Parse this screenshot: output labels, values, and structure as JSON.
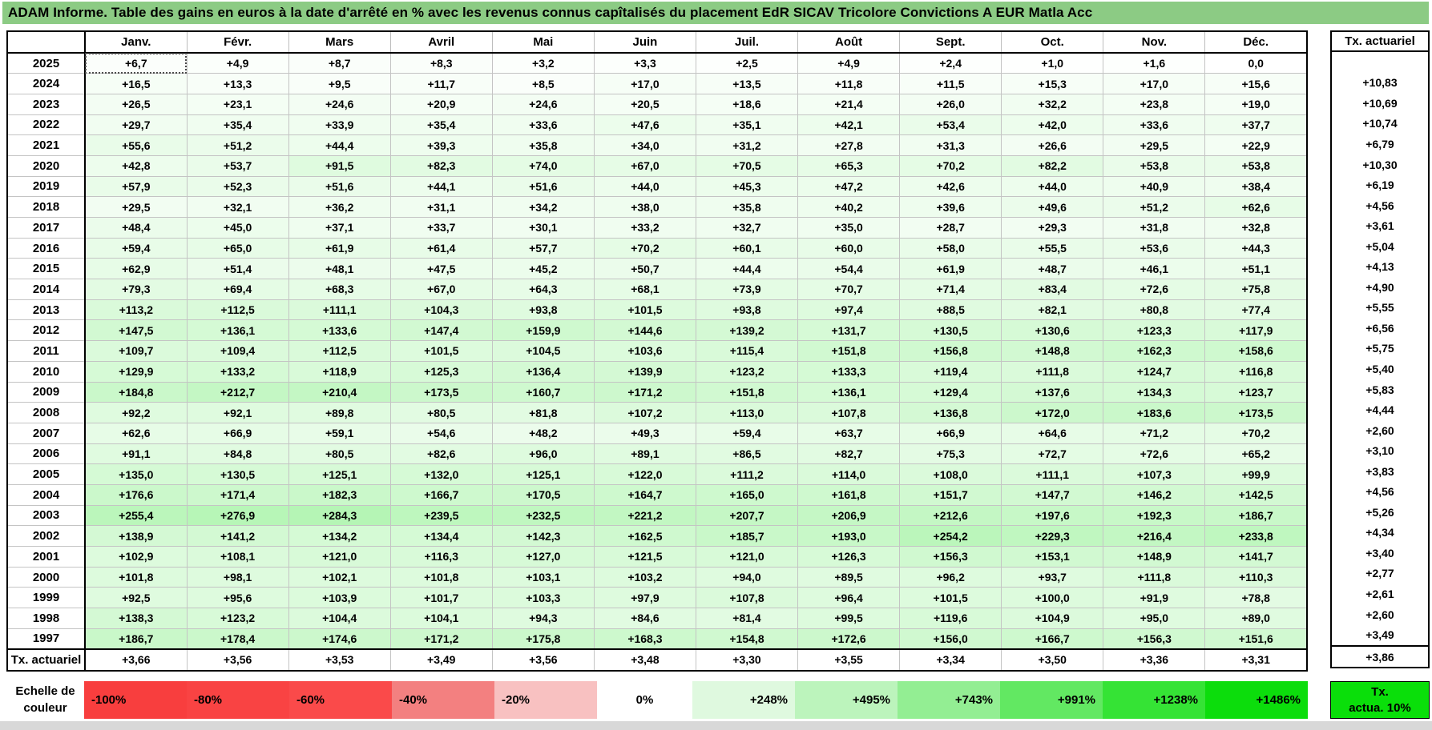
{
  "title": "ADAM Informe. Table des gains en euros à la date d'arrêté en % avec les revenus connus capîtalisés du placement EdR SICAV Tricolore Convictions A EUR Matla Acc",
  "table": {
    "corner": "",
    "columns": [
      "Janv.",
      "Févr.",
      "Mars",
      "Avril",
      "Mai",
      "Juin",
      "Juil.",
      "Août",
      "Sept.",
      "Oct.",
      "Nov.",
      "Déc."
    ],
    "right_header": "Tx. actuariel",
    "rows": [
      {
        "year": "2025",
        "values": [
          "+6,7",
          "+4,9",
          "+8,7",
          "+8,3",
          "+3,2",
          "+3,3",
          "+2,5",
          "+4,9",
          "+2,4",
          "+1,0",
          "+1,6",
          "0,0"
        ],
        "tx": ""
      },
      {
        "year": "2024",
        "values": [
          "+16,5",
          "+13,3",
          "+9,5",
          "+11,7",
          "+8,5",
          "+17,0",
          "+13,5",
          "+11,8",
          "+11,5",
          "+15,3",
          "+17,0",
          "+15,6"
        ],
        "tx": "+10,83"
      },
      {
        "year": "2023",
        "values": [
          "+26,5",
          "+23,1",
          "+24,6",
          "+20,9",
          "+24,6",
          "+20,5",
          "+18,6",
          "+21,4",
          "+26,0",
          "+32,2",
          "+23,8",
          "+19,0"
        ],
        "tx": "+10,69"
      },
      {
        "year": "2022",
        "values": [
          "+29,7",
          "+35,4",
          "+33,9",
          "+35,4",
          "+33,6",
          "+47,6",
          "+35,1",
          "+42,1",
          "+53,4",
          "+42,0",
          "+33,6",
          "+37,7"
        ],
        "tx": "+10,74"
      },
      {
        "year": "2021",
        "values": [
          "+55,6",
          "+51,2",
          "+44,4",
          "+39,3",
          "+35,8",
          "+34,0",
          "+31,2",
          "+27,8",
          "+31,3",
          "+26,6",
          "+29,5",
          "+22,9"
        ],
        "tx": "+6,79"
      },
      {
        "year": "2020",
        "values": [
          "+42,8",
          "+53,7",
          "+91,5",
          "+82,3",
          "+74,0",
          "+67,0",
          "+70,5",
          "+65,3",
          "+70,2",
          "+82,2",
          "+53,8",
          "+53,8"
        ],
        "tx": "+10,30"
      },
      {
        "year": "2019",
        "values": [
          "+57,9",
          "+52,3",
          "+51,6",
          "+44,1",
          "+51,6",
          "+44,0",
          "+45,3",
          "+47,2",
          "+42,6",
          "+44,0",
          "+40,9",
          "+38,4"
        ],
        "tx": "+6,19"
      },
      {
        "year": "2018",
        "values": [
          "+29,5",
          "+32,1",
          "+36,2",
          "+31,1",
          "+34,2",
          "+38,0",
          "+35,8",
          "+40,2",
          "+39,6",
          "+49,6",
          "+51,2",
          "+62,6"
        ],
        "tx": "+4,56"
      },
      {
        "year": "2017",
        "values": [
          "+48,4",
          "+45,0",
          "+37,1",
          "+33,7",
          "+30,1",
          "+33,2",
          "+32,7",
          "+35,0",
          "+28,7",
          "+29,3",
          "+31,8",
          "+32,8"
        ],
        "tx": "+3,61"
      },
      {
        "year": "2016",
        "values": [
          "+59,4",
          "+65,0",
          "+61,9",
          "+61,4",
          "+57,7",
          "+70,2",
          "+60,1",
          "+60,0",
          "+58,0",
          "+55,5",
          "+53,6",
          "+44,3"
        ],
        "tx": "+5,04"
      },
      {
        "year": "2015",
        "values": [
          "+62,9",
          "+51,4",
          "+48,1",
          "+47,5",
          "+45,2",
          "+50,7",
          "+44,4",
          "+54,4",
          "+61,9",
          "+48,7",
          "+46,1",
          "+51,1"
        ],
        "tx": "+4,13"
      },
      {
        "year": "2014",
        "values": [
          "+79,3",
          "+69,4",
          "+68,3",
          "+67,0",
          "+64,3",
          "+68,1",
          "+73,9",
          "+70,7",
          "+71,4",
          "+83,4",
          "+72,6",
          "+75,8"
        ],
        "tx": "+4,90"
      },
      {
        "year": "2013",
        "values": [
          "+113,2",
          "+112,5",
          "+111,1",
          "+104,3",
          "+93,8",
          "+101,5",
          "+93,8",
          "+97,4",
          "+88,5",
          "+82,1",
          "+80,8",
          "+77,4"
        ],
        "tx": "+5,55"
      },
      {
        "year": "2012",
        "values": [
          "+147,5",
          "+136,1",
          "+133,6",
          "+147,4",
          "+159,9",
          "+144,6",
          "+139,2",
          "+131,7",
          "+130,5",
          "+130,6",
          "+123,3",
          "+117,9"
        ],
        "tx": "+6,56"
      },
      {
        "year": "2011",
        "values": [
          "+109,7",
          "+109,4",
          "+112,5",
          "+101,5",
          "+104,5",
          "+103,6",
          "+115,4",
          "+151,8",
          "+156,8",
          "+148,8",
          "+162,3",
          "+158,6"
        ],
        "tx": "+5,75"
      },
      {
        "year": "2010",
        "values": [
          "+129,9",
          "+133,2",
          "+118,9",
          "+125,3",
          "+136,4",
          "+139,9",
          "+123,2",
          "+133,3",
          "+119,4",
          "+111,8",
          "+124,7",
          "+116,8"
        ],
        "tx": "+5,40"
      },
      {
        "year": "2009",
        "values": [
          "+184,8",
          "+212,7",
          "+210,4",
          "+173,5",
          "+160,7",
          "+171,2",
          "+151,8",
          "+136,1",
          "+129,4",
          "+137,6",
          "+134,3",
          "+123,7"
        ],
        "tx": "+5,83"
      },
      {
        "year": "2008",
        "values": [
          "+92,2",
          "+92,1",
          "+89,8",
          "+80,5",
          "+81,8",
          "+107,2",
          "+113,0",
          "+107,8",
          "+136,8",
          "+172,0",
          "+183,6",
          "+173,5"
        ],
        "tx": "+4,44"
      },
      {
        "year": "2007",
        "values": [
          "+62,6",
          "+66,9",
          "+59,1",
          "+54,6",
          "+48,2",
          "+49,3",
          "+59,4",
          "+63,7",
          "+66,9",
          "+64,6",
          "+71,2",
          "+70,2"
        ],
        "tx": "+2,60"
      },
      {
        "year": "2006",
        "values": [
          "+91,1",
          "+84,8",
          "+80,5",
          "+82,6",
          "+96,0",
          "+89,1",
          "+86,5",
          "+82,7",
          "+75,3",
          "+72,7",
          "+72,6",
          "+65,2"
        ],
        "tx": "+3,10"
      },
      {
        "year": "2005",
        "values": [
          "+135,0",
          "+130,5",
          "+125,1",
          "+132,0",
          "+125,1",
          "+122,0",
          "+111,2",
          "+114,0",
          "+108,0",
          "+111,1",
          "+107,3",
          "+99,9"
        ],
        "tx": "+3,83"
      },
      {
        "year": "2004",
        "values": [
          "+176,6",
          "+171,4",
          "+182,3",
          "+166,7",
          "+170,5",
          "+164,7",
          "+165,0",
          "+161,8",
          "+151,7",
          "+147,7",
          "+146,2",
          "+142,5"
        ],
        "tx": "+4,56"
      },
      {
        "year": "2003",
        "values": [
          "+255,4",
          "+276,9",
          "+284,3",
          "+239,5",
          "+232,5",
          "+221,2",
          "+207,7",
          "+206,9",
          "+212,6",
          "+197,6",
          "+192,3",
          "+186,7"
        ],
        "tx": "+5,26"
      },
      {
        "year": "2002",
        "values": [
          "+138,9",
          "+141,2",
          "+134,2",
          "+134,4",
          "+142,3",
          "+162,5",
          "+185,7",
          "+193,0",
          "+254,2",
          "+229,3",
          "+216,4",
          "+233,8"
        ],
        "tx": "+4,34"
      },
      {
        "year": "2001",
        "values": [
          "+102,9",
          "+108,1",
          "+121,0",
          "+116,3",
          "+127,0",
          "+121,5",
          "+121,0",
          "+126,3",
          "+156,3",
          "+153,1",
          "+148,9",
          "+141,7"
        ],
        "tx": "+3,40"
      },
      {
        "year": "2000",
        "values": [
          "+101,8",
          "+98,1",
          "+102,1",
          "+101,8",
          "+103,1",
          "+103,2",
          "+94,0",
          "+89,5",
          "+96,2",
          "+93,7",
          "+111,8",
          "+110,3"
        ],
        "tx": "+2,77"
      },
      {
        "year": "1999",
        "values": [
          "+92,5",
          "+95,6",
          "+103,9",
          "+101,7",
          "+103,3",
          "+97,9",
          "+107,8",
          "+96,4",
          "+101,5",
          "+100,0",
          "+91,9",
          "+78,8"
        ],
        "tx": "+2,61"
      },
      {
        "year": "1998",
        "values": [
          "+138,3",
          "+123,2",
          "+104,4",
          "+104,1",
          "+94,3",
          "+84,6",
          "+81,4",
          "+99,5",
          "+119,6",
          "+104,9",
          "+95,0",
          "+89,0"
        ],
        "tx": "+2,60"
      },
      {
        "year": "1997",
        "values": [
          "+186,7",
          "+178,4",
          "+174,6",
          "+171,2",
          "+175,8",
          "+168,3",
          "+154,8",
          "+172,6",
          "+156,0",
          "+166,7",
          "+156,3",
          "+151,6"
        ],
        "tx": "+3,49"
      }
    ],
    "footer": {
      "label": "Tx. actuariel",
      "values": [
        "+3,66",
        "+3,56",
        "+3,53",
        "+3,49",
        "+3,56",
        "+3,48",
        "+3,30",
        "+3,55",
        "+3,34",
        "+3,50",
        "+3,36",
        "+3,31"
      ],
      "tx": "+3,86"
    },
    "selected_cell": {
      "year": "2025",
      "col": 0
    }
  },
  "color_scale": {
    "label_line1": "Echelle de",
    "label_line2": "couleur",
    "stops": [
      {
        "label": "-100%",
        "color": "#F83E3E",
        "align": "left"
      },
      {
        "label": "-80%",
        "color": "#F94343",
        "align": "left"
      },
      {
        "label": "-60%",
        "color": "#FA4A4A",
        "align": "left"
      },
      {
        "label": "-40%",
        "color": "#F38080",
        "align": "left"
      },
      {
        "label": "-20%",
        "color": "#F8C1C1",
        "align": "left"
      },
      {
        "label": "0%",
        "color": "#FFFFFF",
        "align": "center"
      },
      {
        "label": "+248%",
        "color": "#DFF9DF",
        "align": "right"
      },
      {
        "label": "+495%",
        "color": "#BCF4BC",
        "align": "right"
      },
      {
        "label": "+743%",
        "color": "#93EE93",
        "align": "right"
      },
      {
        "label": "+991%",
        "color": "#62E862",
        "align": "right"
      },
      {
        "label": "+1238%",
        "color": "#35E335",
        "align": "right"
      },
      {
        "label": "+1486%",
        "color": "#0CDD0C",
        "align": "right"
      }
    ],
    "right_box": {
      "line1": "Tx.",
      "line2": "actua. 10%",
      "color": "#0ADF0A"
    }
  },
  "colors": {
    "title_bg": "#8CCB84",
    "grid": "#c4c4c4",
    "cell_green_max": "#00DE00",
    "scale_max": 1486
  }
}
